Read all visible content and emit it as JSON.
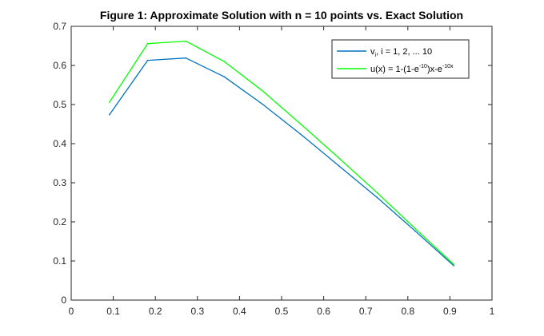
{
  "chart_data": {
    "type": "line",
    "title": "Figure 1: Approximate Solution with n = 10 points vs. Exact Solution",
    "xlabel": "",
    "ylabel": "",
    "xlim": [
      0,
      1
    ],
    "ylim": [
      0,
      0.7
    ],
    "x_ticks": [
      "0",
      "0.1",
      "0.2",
      "0.3",
      "0.4",
      "0.5",
      "0.6",
      "0.7",
      "0.8",
      "0.9",
      "1"
    ],
    "y_ticks": [
      "0",
      "0.1",
      "0.2",
      "0.3",
      "0.4",
      "0.5",
      "0.6",
      "0.7"
    ],
    "grid": false,
    "legend_position": "top-right",
    "series": [
      {
        "legend": {
          "base": "v",
          "sub": "i",
          "rest": ", i = 1, 2, ... 10"
        },
        "color": "#0072BD",
        "x": [
          0.0909,
          0.1818,
          0.2727,
          0.3636,
          0.4545,
          0.5455,
          0.6364,
          0.7273,
          0.8182,
          0.9091
        ],
        "y": [
          0.474,
          0.613,
          0.619,
          0.571,
          0.501,
          0.424,
          0.343,
          0.262,
          0.176,
          0.088
        ]
      },
      {
        "legend": {
          "p1": "u(x) = 1-(1-e",
          "sup1": "-10",
          "p2": ")x-e",
          "sup2": "-10x"
        },
        "color": "#00FF00",
        "x": [
          0.0909,
          0.1818,
          0.2727,
          0.3636,
          0.4545,
          0.5455,
          0.6364,
          0.7273,
          0.8182,
          0.9091
        ],
        "y": [
          0.506,
          0.656,
          0.662,
          0.61,
          0.535,
          0.45,
          0.363,
          0.274,
          0.182,
          0.091
        ]
      }
    ]
  }
}
